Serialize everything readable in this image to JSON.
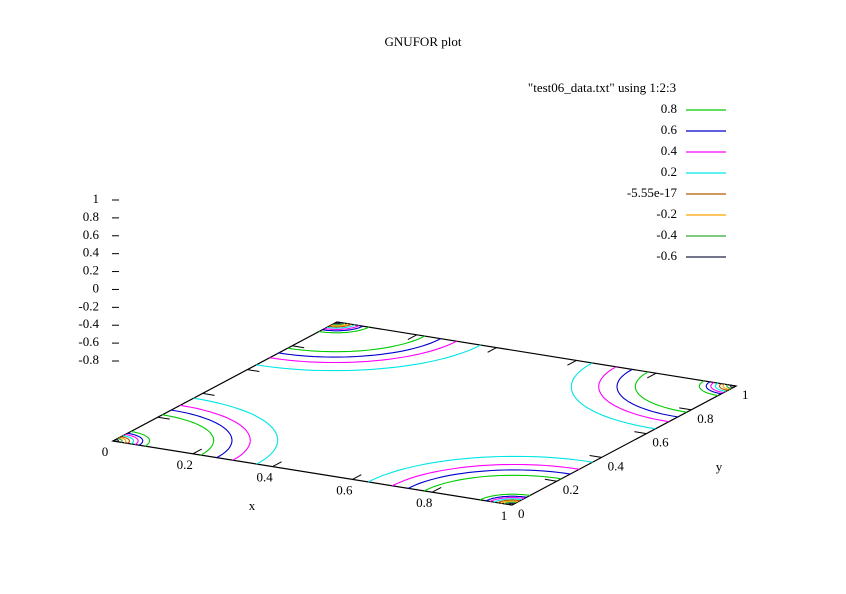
{
  "chart_data": {
    "type": "contour",
    "title": "GNUFOR plot",
    "xlabel": "x",
    "ylabel": "y",
    "legend_title": "\"test06_data.txt\" using 1:2:3",
    "xlim": [
      0,
      1
    ],
    "ylim": [
      0,
      1
    ],
    "zlim": [
      -0.8,
      1
    ],
    "xticks": [
      0,
      0.2,
      0.4,
      0.6,
      0.8,
      1
    ],
    "yticks": [
      0,
      0.2,
      0.4,
      0.6,
      0.8,
      1
    ],
    "zticks": [
      1,
      0.8,
      0.6,
      0.4,
      0.2,
      0,
      -0.2,
      -0.4,
      -0.6,
      -0.8
    ],
    "series": [
      {
        "name": "0.8",
        "color": "#00cc00",
        "radii": [
          0.08,
          0.22
        ]
      },
      {
        "name": "0.6",
        "color": "#0000cc",
        "radii": [
          0.065,
          0.26
        ]
      },
      {
        "name": "0.4",
        "color": "#ff00ff",
        "radii": [
          0.055,
          0.3
        ]
      },
      {
        "name": "0.2",
        "color": "#00e6e6",
        "radii": [
          0.045,
          0.36
        ]
      },
      {
        "name": "-5.55e-17",
        "color": "#b05a00",
        "radii": [
          0.036
        ]
      },
      {
        "name": "-0.2",
        "color": "#ffa500",
        "radii": [
          0.028
        ]
      },
      {
        "name": "-0.4",
        "color": "#33aa33",
        "radii": [
          0.02
        ]
      },
      {
        "name": "-0.6",
        "color": "#222244",
        "radii": [
          0.012
        ]
      }
    ]
  }
}
